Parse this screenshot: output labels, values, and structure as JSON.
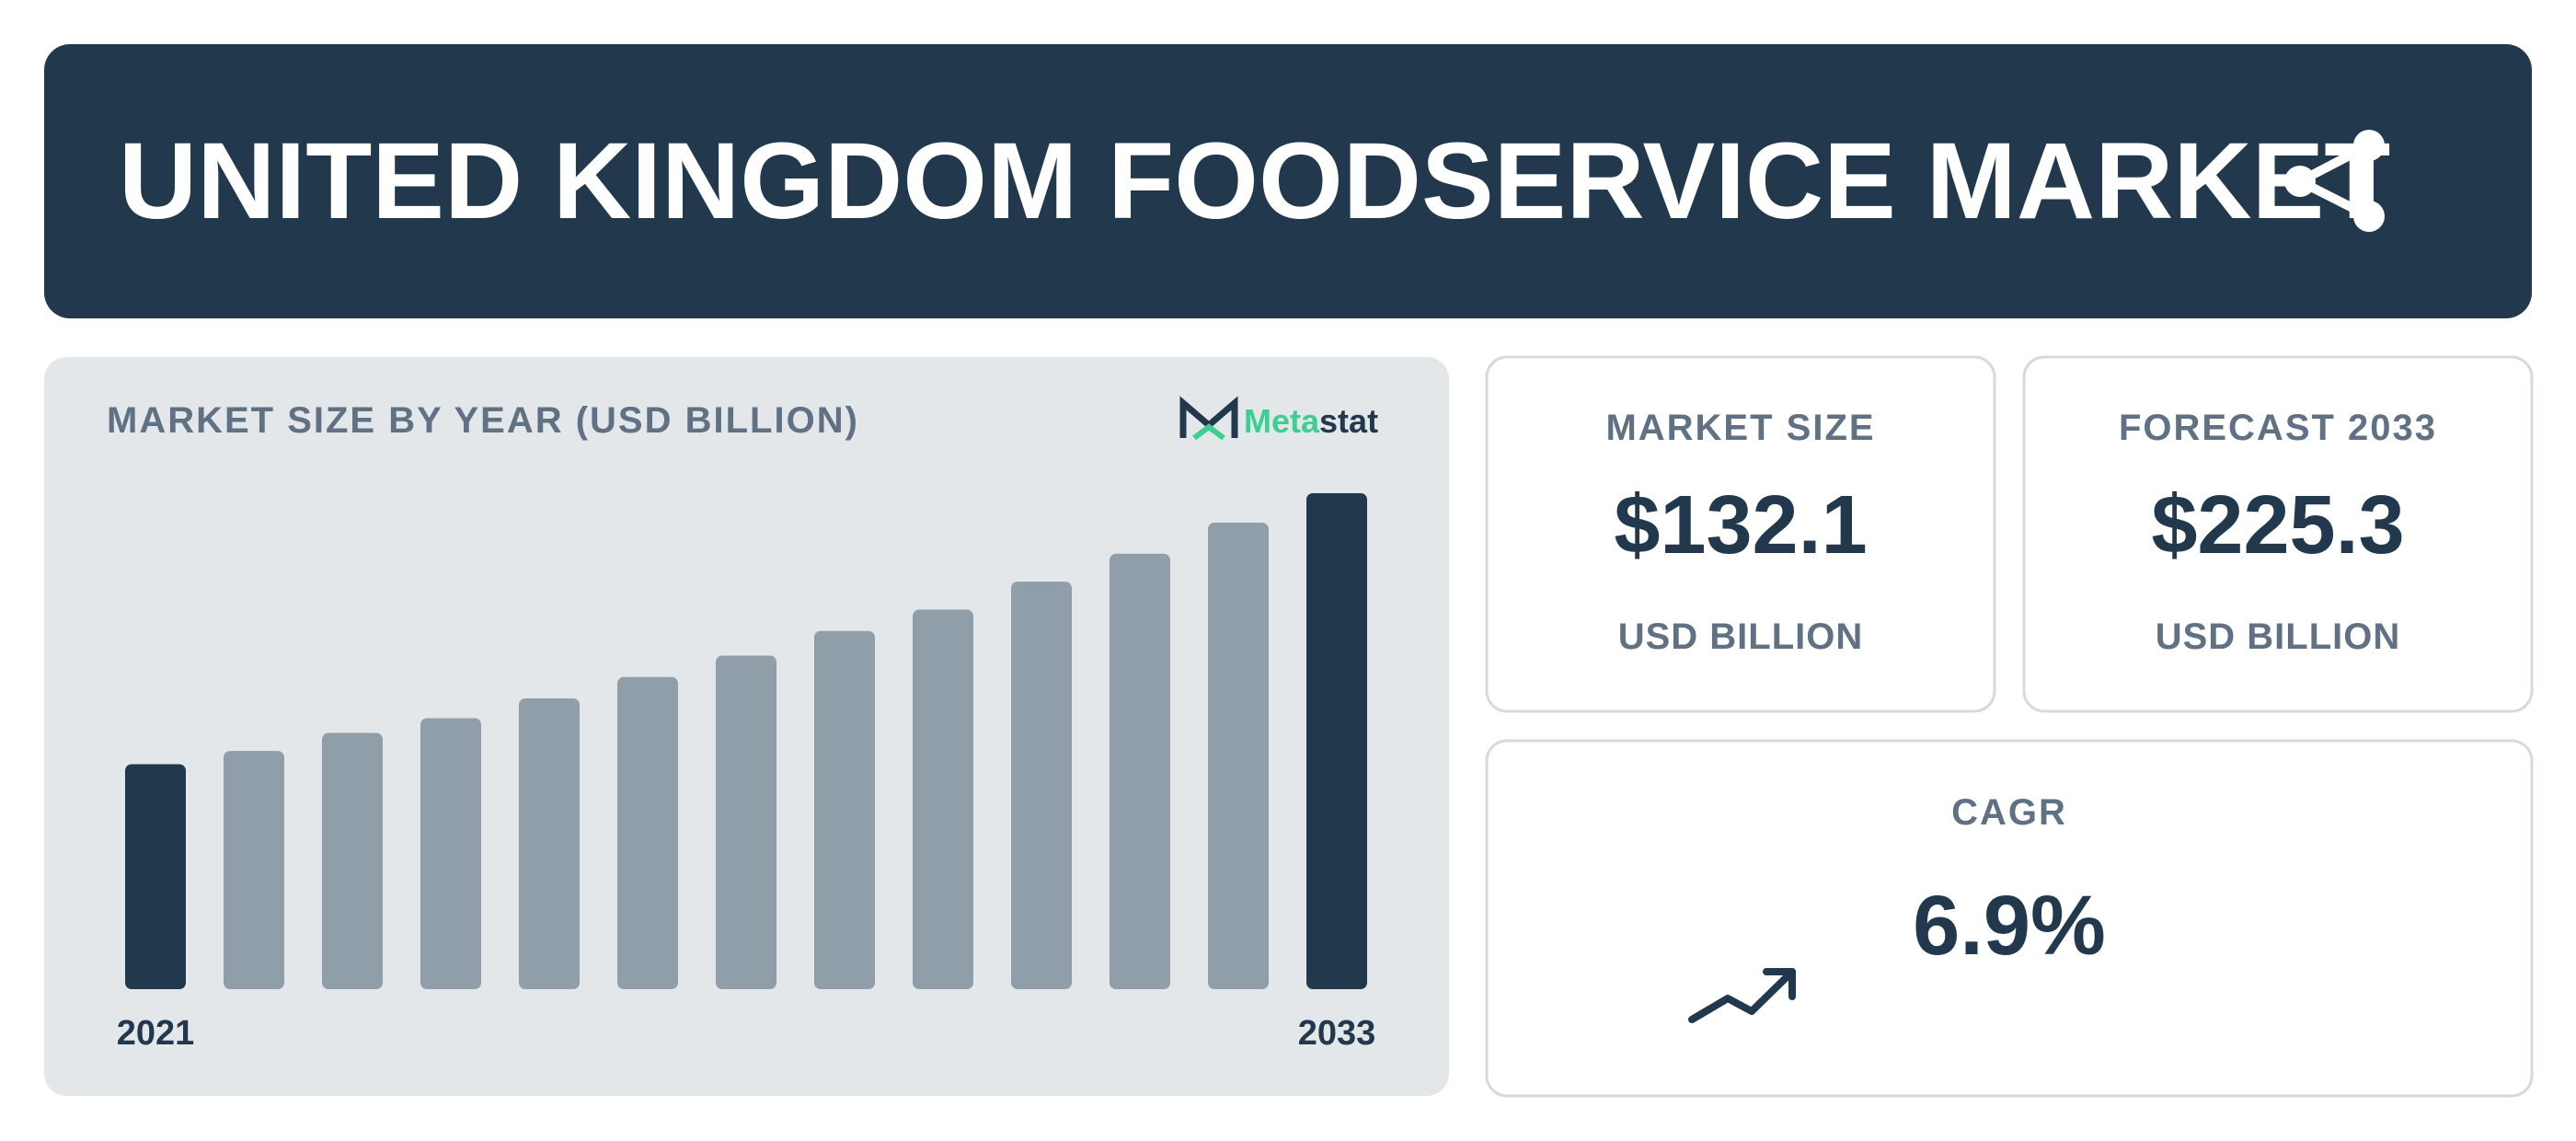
{
  "header": {
    "title": "UNITED KINGDOM FOODSERVICE MARKET"
  },
  "logo": {
    "parts": [
      "Meta",
      "stat"
    ]
  },
  "chart_data": {
    "type": "bar",
    "title": "MARKET SIZE BY YEAR (USD BILLION)",
    "categories": [
      "2021",
      null,
      null,
      null,
      null,
      null,
      null,
      null,
      null,
      null,
      null,
      null,
      "2033"
    ],
    "values": [
      102.2,
      108.2,
      116.4,
      123.1,
      132.1,
      141.8,
      151.5,
      162.7,
      172.4,
      185.1,
      197.8,
      211.9,
      225.3
    ],
    "colors": [
      "#21384d",
      "#8f9ea9",
      "#8f9ea9",
      "#8f9ea9",
      "#8f9ea9",
      "#8f9ea9",
      "#8f9ea9",
      "#8f9ea9",
      "#8f9ea9",
      "#8f9ea9",
      "#8f9ea9",
      "#8f9ea9",
      "#21384d"
    ]
  },
  "cards": [
    {
      "label": "MARKET SIZE",
      "value": "$132.1",
      "unit": "USD BILLION"
    },
    {
      "label": "FORECAST 2033",
      "value": "$225.3",
      "unit": "USD BILLION"
    },
    {
      "label": "CAGR",
      "value": "6.9%"
    }
  ]
}
